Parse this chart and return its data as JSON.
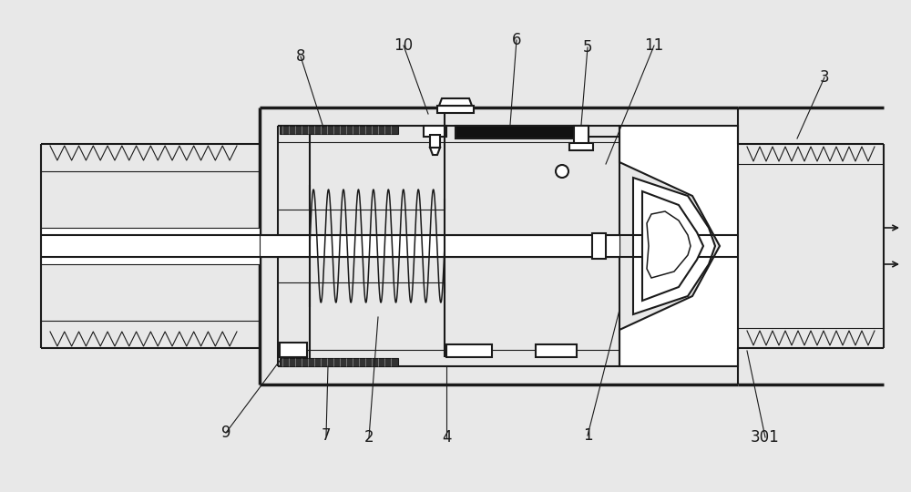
{
  "bg_color": "#e8e8e8",
  "line_color": "#1a1a1a",
  "figsize": [
    10.0,
    5.4
  ],
  "dpi": 100,
  "lw_thin": 0.8,
  "lw_med": 1.5,
  "lw_thick": 2.5
}
